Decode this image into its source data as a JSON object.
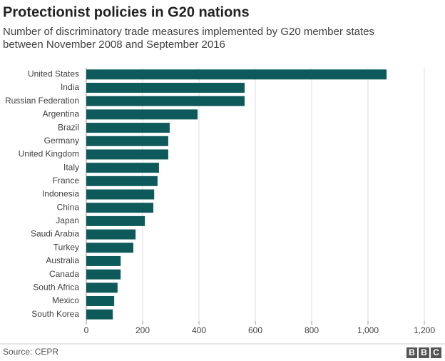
{
  "chart_data": {
    "type": "bar",
    "orientation": "horizontal",
    "title": "Protectionist policies in G20 nations",
    "subtitle": "Number of discriminatory trade measures implemented by G20 member states between November 2008 and September 2016",
    "categories": [
      "United States",
      "India",
      "Russian Federation",
      "Argentina",
      "Brazil",
      "Germany",
      "United Kingdom",
      "Italy",
      "France",
      "Indonesia",
      "China",
      "Japan",
      "Saudi Arabia",
      "Turkey",
      "Australia",
      "Canada",
      "South Africa",
      "Mexico",
      "South Korea"
    ],
    "values": [
      1066,
      562,
      562,
      395,
      296,
      291,
      291,
      258,
      253,
      241,
      238,
      208,
      175,
      167,
      122,
      122,
      111,
      99,
      94
    ],
    "color": "#0e5a5a",
    "xlim": [
      0,
      1200
    ],
    "xticks": [
      0,
      200,
      400,
      600,
      800,
      {
        "value": 1000,
        "label": "1,000"
      },
      {
        "value": 1200,
        "label": "1,200"
      }
    ],
    "grid": true
  },
  "source": "Source: CEPR",
  "logo": [
    "B",
    "B",
    "C"
  ]
}
